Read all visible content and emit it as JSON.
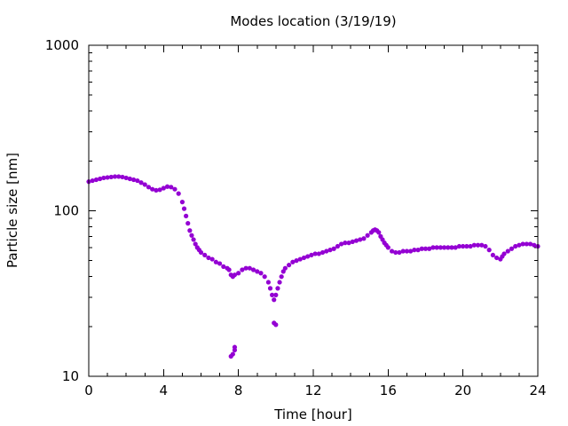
{
  "chart_data": {
    "type": "scatter",
    "title": "Modes location (3/19/19)",
    "xlabel": "Time [hour]",
    "ylabel": "Particle size [nm]",
    "xlim": [
      0,
      24
    ],
    "ylim": [
      10,
      1000
    ],
    "yscale": "log",
    "grid": false,
    "legend": "none",
    "x_ticks": [
      {
        "value": 0,
        "label": "0"
      },
      {
        "value": 4,
        "label": "4"
      },
      {
        "value": 8,
        "label": "8"
      },
      {
        "value": 12,
        "label": "12"
      },
      {
        "value": 16,
        "label": "16"
      },
      {
        "value": 20,
        "label": "20"
      },
      {
        "value": 24,
        "label": "24"
      }
    ],
    "y_ticks": [
      {
        "value": 10,
        "label": "10"
      },
      {
        "value": 100,
        "label": "100"
      },
      {
        "value": 1000,
        "label": "1000"
      }
    ],
    "series": [
      {
        "color": "#9400d3",
        "marker": "*",
        "points": [
          [
            0.0,
            150
          ],
          [
            0.2,
            152
          ],
          [
            0.4,
            154
          ],
          [
            0.6,
            156
          ],
          [
            0.8,
            158
          ],
          [
            1.0,
            159
          ],
          [
            1.2,
            160
          ],
          [
            1.4,
            161
          ],
          [
            1.6,
            161
          ],
          [
            1.8,
            160
          ],
          [
            2.0,
            158
          ],
          [
            2.2,
            156
          ],
          [
            2.4,
            154
          ],
          [
            2.6,
            152
          ],
          [
            2.8,
            148
          ],
          [
            3.0,
            144
          ],
          [
            3.2,
            139
          ],
          [
            3.4,
            135
          ],
          [
            3.6,
            133
          ],
          [
            3.8,
            134
          ],
          [
            4.0,
            137
          ],
          [
            4.2,
            140
          ],
          [
            4.4,
            139
          ],
          [
            4.6,
            135
          ],
          [
            4.8,
            127
          ],
          [
            5.0,
            113
          ],
          [
            5.1,
            103
          ],
          [
            5.2,
            93
          ],
          [
            5.3,
            84
          ],
          [
            5.4,
            76
          ],
          [
            5.5,
            71
          ],
          [
            5.6,
            67
          ],
          [
            5.7,
            63
          ],
          [
            5.8,
            60
          ],
          [
            5.9,
            58
          ],
          [
            6.0,
            56
          ],
          [
            6.2,
            54
          ],
          [
            6.4,
            52
          ],
          [
            6.6,
            51
          ],
          [
            6.8,
            49
          ],
          [
            7.0,
            48
          ],
          [
            7.2,
            46
          ],
          [
            7.4,
            45
          ],
          [
            7.5,
            44
          ],
          [
            7.6,
            41
          ],
          [
            7.7,
            40
          ],
          [
            7.8,
            41
          ],
          [
            8.0,
            42
          ],
          [
            8.2,
            44
          ],
          [
            8.4,
            45
          ],
          [
            8.6,
            45
          ],
          [
            8.8,
            44
          ],
          [
            9.0,
            43
          ],
          [
            9.2,
            42
          ],
          [
            9.4,
            40
          ],
          [
            9.6,
            37
          ],
          [
            9.7,
            34
          ],
          [
            9.8,
            31
          ],
          [
            9.9,
            29
          ],
          [
            10.0,
            31
          ],
          [
            10.1,
            34
          ],
          [
            10.2,
            37
          ],
          [
            10.3,
            40
          ],
          [
            10.4,
            43
          ],
          [
            10.5,
            45
          ],
          [
            10.7,
            47
          ],
          [
            10.9,
            49
          ],
          [
            11.1,
            50
          ],
          [
            11.3,
            51
          ],
          [
            11.5,
            52
          ],
          [
            11.7,
            53
          ],
          [
            11.9,
            54
          ],
          [
            12.1,
            55
          ],
          [
            12.3,
            55
          ],
          [
            12.5,
            56
          ],
          [
            12.7,
            57
          ],
          [
            12.9,
            58
          ],
          [
            13.1,
            59
          ],
          [
            13.3,
            61
          ],
          [
            13.5,
            63
          ],
          [
            13.7,
            64
          ],
          [
            13.9,
            64
          ],
          [
            14.1,
            65
          ],
          [
            14.3,
            66
          ],
          [
            14.5,
            67
          ],
          [
            14.7,
            68
          ],
          [
            14.9,
            71
          ],
          [
            15.1,
            74
          ],
          [
            15.2,
            76
          ],
          [
            15.3,
            77
          ],
          [
            15.4,
            76
          ],
          [
            15.5,
            74
          ],
          [
            15.6,
            70
          ],
          [
            15.7,
            67
          ],
          [
            15.8,
            64
          ],
          [
            15.9,
            62
          ],
          [
            16.0,
            60
          ],
          [
            16.2,
            57
          ],
          [
            16.4,
            56
          ],
          [
            16.6,
            56
          ],
          [
            16.8,
            57
          ],
          [
            17.0,
            57
          ],
          [
            17.2,
            57
          ],
          [
            17.4,
            58
          ],
          [
            17.6,
            58
          ],
          [
            17.8,
            59
          ],
          [
            18.0,
            59
          ],
          [
            18.2,
            59
          ],
          [
            18.4,
            60
          ],
          [
            18.6,
            60
          ],
          [
            18.8,
            60
          ],
          [
            19.0,
            60
          ],
          [
            19.2,
            60
          ],
          [
            19.4,
            60
          ],
          [
            19.6,
            60
          ],
          [
            19.8,
            61
          ],
          [
            20.0,
            61
          ],
          [
            20.2,
            61
          ],
          [
            20.4,
            61
          ],
          [
            20.6,
            62
          ],
          [
            20.8,
            62
          ],
          [
            21.0,
            62
          ],
          [
            21.2,
            61
          ],
          [
            21.4,
            58
          ],
          [
            21.6,
            54
          ],
          [
            21.8,
            52
          ],
          [
            22.0,
            51
          ],
          [
            22.1,
            53
          ],
          [
            22.2,
            55
          ],
          [
            22.4,
            57
          ],
          [
            22.6,
            59
          ],
          [
            22.8,
            61
          ],
          [
            23.0,
            62
          ],
          [
            23.2,
            63
          ],
          [
            23.4,
            63
          ],
          [
            23.6,
            63
          ],
          [
            23.8,
            62
          ],
          [
            24.0,
            61
          ],
          [
            7.6,
            13.2
          ],
          [
            7.7,
            13.6
          ],
          [
            7.8,
            14.4
          ],
          [
            7.8,
            15.0
          ],
          [
            9.9,
            21.0
          ],
          [
            10.0,
            20.5
          ]
        ]
      }
    ]
  }
}
